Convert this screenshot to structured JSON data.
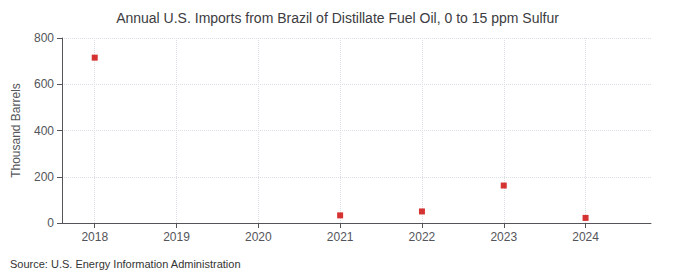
{
  "chart_data": {
    "type": "scatter",
    "title": "Annual U.S. Imports from Brazil of Distillate Fuel Oil, 0 to 15 ppm Sulfur",
    "ylabel": "Thousand Barrels",
    "annotation": "Source: U.S. Energy Information Administration",
    "x": [
      2018,
      2021,
      2022,
      2023,
      2024
    ],
    "values": [
      715,
      33,
      50,
      162,
      22
    ],
    "color": "#cc0000",
    "marker": "square",
    "xlim": [
      2017.6,
      2024.8
    ],
    "xticks": [
      2018,
      2019,
      2020,
      2021,
      2022,
      2023,
      2024
    ],
    "ylim": [
      0,
      800
    ],
    "yticks": [
      0,
      200,
      400,
      600,
      800
    ],
    "grid": true
  }
}
